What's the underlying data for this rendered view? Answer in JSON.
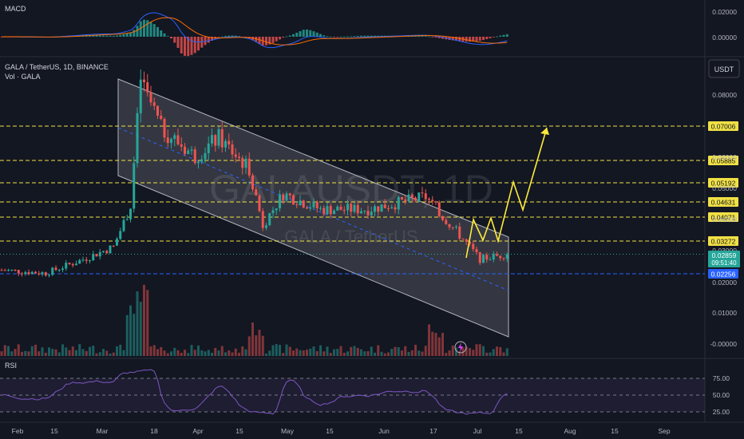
{
  "header": {
    "symbol": "GALA / TetherUS, 1D, BINANCE",
    "volume_label": "Vol · GALA",
    "currency_button": "USDT",
    "watermark_main": "GALAUSDT, 1D",
    "watermark_sub": "GALA / TetherUS"
  },
  "panes": {
    "macd_label": "MACD",
    "rsi_label": "RSI"
  },
  "price_axis": {
    "ticks": [
      "0.08000",
      "0.06000",
      "0.05000",
      "0.04000",
      "0.03000",
      "0.02000",
      "0.01000",
      "-0.00000"
    ],
    "macd_ticks": [
      "0.02000",
      "0.00000"
    ],
    "rsi_ticks": [
      "75.00",
      "50.00",
      "25.00"
    ],
    "last_price": "0.02859",
    "countdown": "09:51:40"
  },
  "time_axis": [
    "Feb",
    "15",
    "Mar",
    "18",
    "Apr",
    "15",
    "May",
    "15",
    "Jun",
    "17",
    "Jul",
    "15",
    "Aug",
    "15",
    "Sep"
  ],
  "levels": [
    {
      "value": "0.07006",
      "style": "yellow"
    },
    {
      "value": "0.05885",
      "style": "yellow"
    },
    {
      "value": "0.05192",
      "style": "yellow"
    },
    {
      "value": "0.04631",
      "style": "yellow"
    },
    {
      "value": "0.04071",
      "style": "yellow"
    },
    {
      "value": "0.03272",
      "style": "yellow"
    },
    {
      "value": "0.02256",
      "style": "blue"
    }
  ],
  "colors": {
    "background": "#131722",
    "up": "#26a69a",
    "down": "#ef5350",
    "level_line": "#f0e045",
    "support_line": "#2962ff",
    "channel_fill": "#ffffff",
    "projection": "#ffeb3b",
    "macd_line": "#2962ff",
    "signal_line": "#ff6d00",
    "rsi_line": "#7e57c2"
  },
  "chart_data": {
    "type": "candlestick",
    "symbol": "GALAUSDT",
    "interval": "1D",
    "ylim": [
      -0.005,
      0.09
    ],
    "approx_close_path": [
      {
        "date": "2024-01-28",
        "close": 0.0235
      },
      {
        "date": "2024-02-10",
        "close": 0.0225
      },
      {
        "date": "2024-02-20",
        "close": 0.0265
      },
      {
        "date": "2024-03-01",
        "close": 0.031
      },
      {
        "date": "2024-03-06",
        "close": 0.044
      },
      {
        "date": "2024-03-09",
        "close": 0.085
      },
      {
        "date": "2024-03-15",
        "close": 0.069
      },
      {
        "date": "2024-03-25",
        "close": 0.06
      },
      {
        "date": "2024-04-01",
        "close": 0.066
      },
      {
        "date": "2024-04-10",
        "close": 0.056
      },
      {
        "date": "2024-04-14",
        "close": 0.038
      },
      {
        "date": "2024-04-20",
        "close": 0.048
      },
      {
        "date": "2024-05-01",
        "close": 0.043
      },
      {
        "date": "2024-05-15",
        "close": 0.043
      },
      {
        "date": "2024-06-01",
        "close": 0.047
      },
      {
        "date": "2024-06-10",
        "close": 0.036
      },
      {
        "date": "2024-06-17",
        "close": 0.027
      },
      {
        "date": "2024-06-25",
        "close": 0.0286
      }
    ],
    "last_price": 0.02859,
    "horizontal_levels": [
      0.07006,
      0.05885,
      0.05192,
      0.04631,
      0.04071,
      0.03272,
      0.02256
    ],
    "rsi_levels": [
      75,
      50,
      25
    ]
  }
}
